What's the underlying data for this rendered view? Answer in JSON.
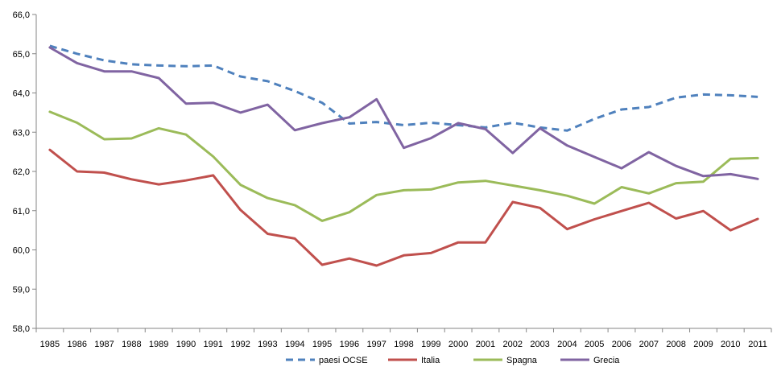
{
  "chart_data": {
    "type": "line",
    "x": [
      "1985",
      "1986",
      "1987",
      "1988",
      "1989",
      "1990",
      "1991",
      "1992",
      "1993",
      "1994",
      "1995",
      "1996",
      "1997",
      "1998",
      "1999",
      "2000",
      "2001",
      "2002",
      "2003",
      "2004",
      "2005",
      "2006",
      "2007",
      "2008",
      "2009",
      "2010",
      "2011"
    ],
    "ylim": [
      58,
      66
    ],
    "yticks": [
      "58,0",
      "59,0",
      "60,0",
      "61,0",
      "62,0",
      "63,0",
      "64,0",
      "65,0",
      "66,0"
    ],
    "grid": false,
    "legend_position": "bottom",
    "series": [
      {
        "name": "paesi OCSE",
        "color": "#4F81BD",
        "dash": true,
        "values": [
          65.2,
          65.0,
          64.83,
          64.73,
          64.7,
          64.68,
          64.7,
          64.42,
          64.3,
          64.05,
          63.75,
          63.22,
          63.26,
          63.18,
          63.24,
          63.18,
          63.12,
          63.24,
          63.12,
          63.04,
          63.34,
          63.58,
          63.64,
          63.88,
          63.96,
          63.94,
          63.9
        ]
      },
      {
        "name": "Italia",
        "color": "#C0504D",
        "dash": false,
        "values": [
          62.55,
          62.0,
          61.97,
          61.8,
          61.67,
          61.77,
          61.9,
          61.02,
          60.41,
          60.29,
          59.62,
          59.78,
          59.6,
          59.86,
          59.92,
          60.19,
          60.19,
          61.22,
          61.07,
          60.53,
          60.78,
          60.99,
          61.2,
          60.8,
          60.99,
          60.5,
          60.79
        ]
      },
      {
        "name": "Spagna",
        "color": "#9BBB59",
        "dash": false,
        "values": [
          63.52,
          63.24,
          62.82,
          62.84,
          63.1,
          62.94,
          62.38,
          61.66,
          61.32,
          61.14,
          60.74,
          60.96,
          61.4,
          61.52,
          61.54,
          61.72,
          61.76,
          61.64,
          61.52,
          61.38,
          61.18,
          61.6,
          61.44,
          61.7,
          61.74,
          62.32,
          62.34
        ]
      },
      {
        "name": "Grecia",
        "color": "#8064A2",
        "dash": false,
        "values": [
          65.16,
          64.76,
          64.55,
          64.55,
          64.38,
          63.73,
          63.75,
          63.5,
          63.7,
          63.05,
          63.23,
          63.38,
          63.84,
          62.6,
          62.85,
          63.23,
          63.08,
          62.47,
          63.1,
          62.66,
          62.37,
          62.08,
          62.49,
          62.14,
          61.88,
          61.93,
          61.81
        ]
      }
    ]
  }
}
